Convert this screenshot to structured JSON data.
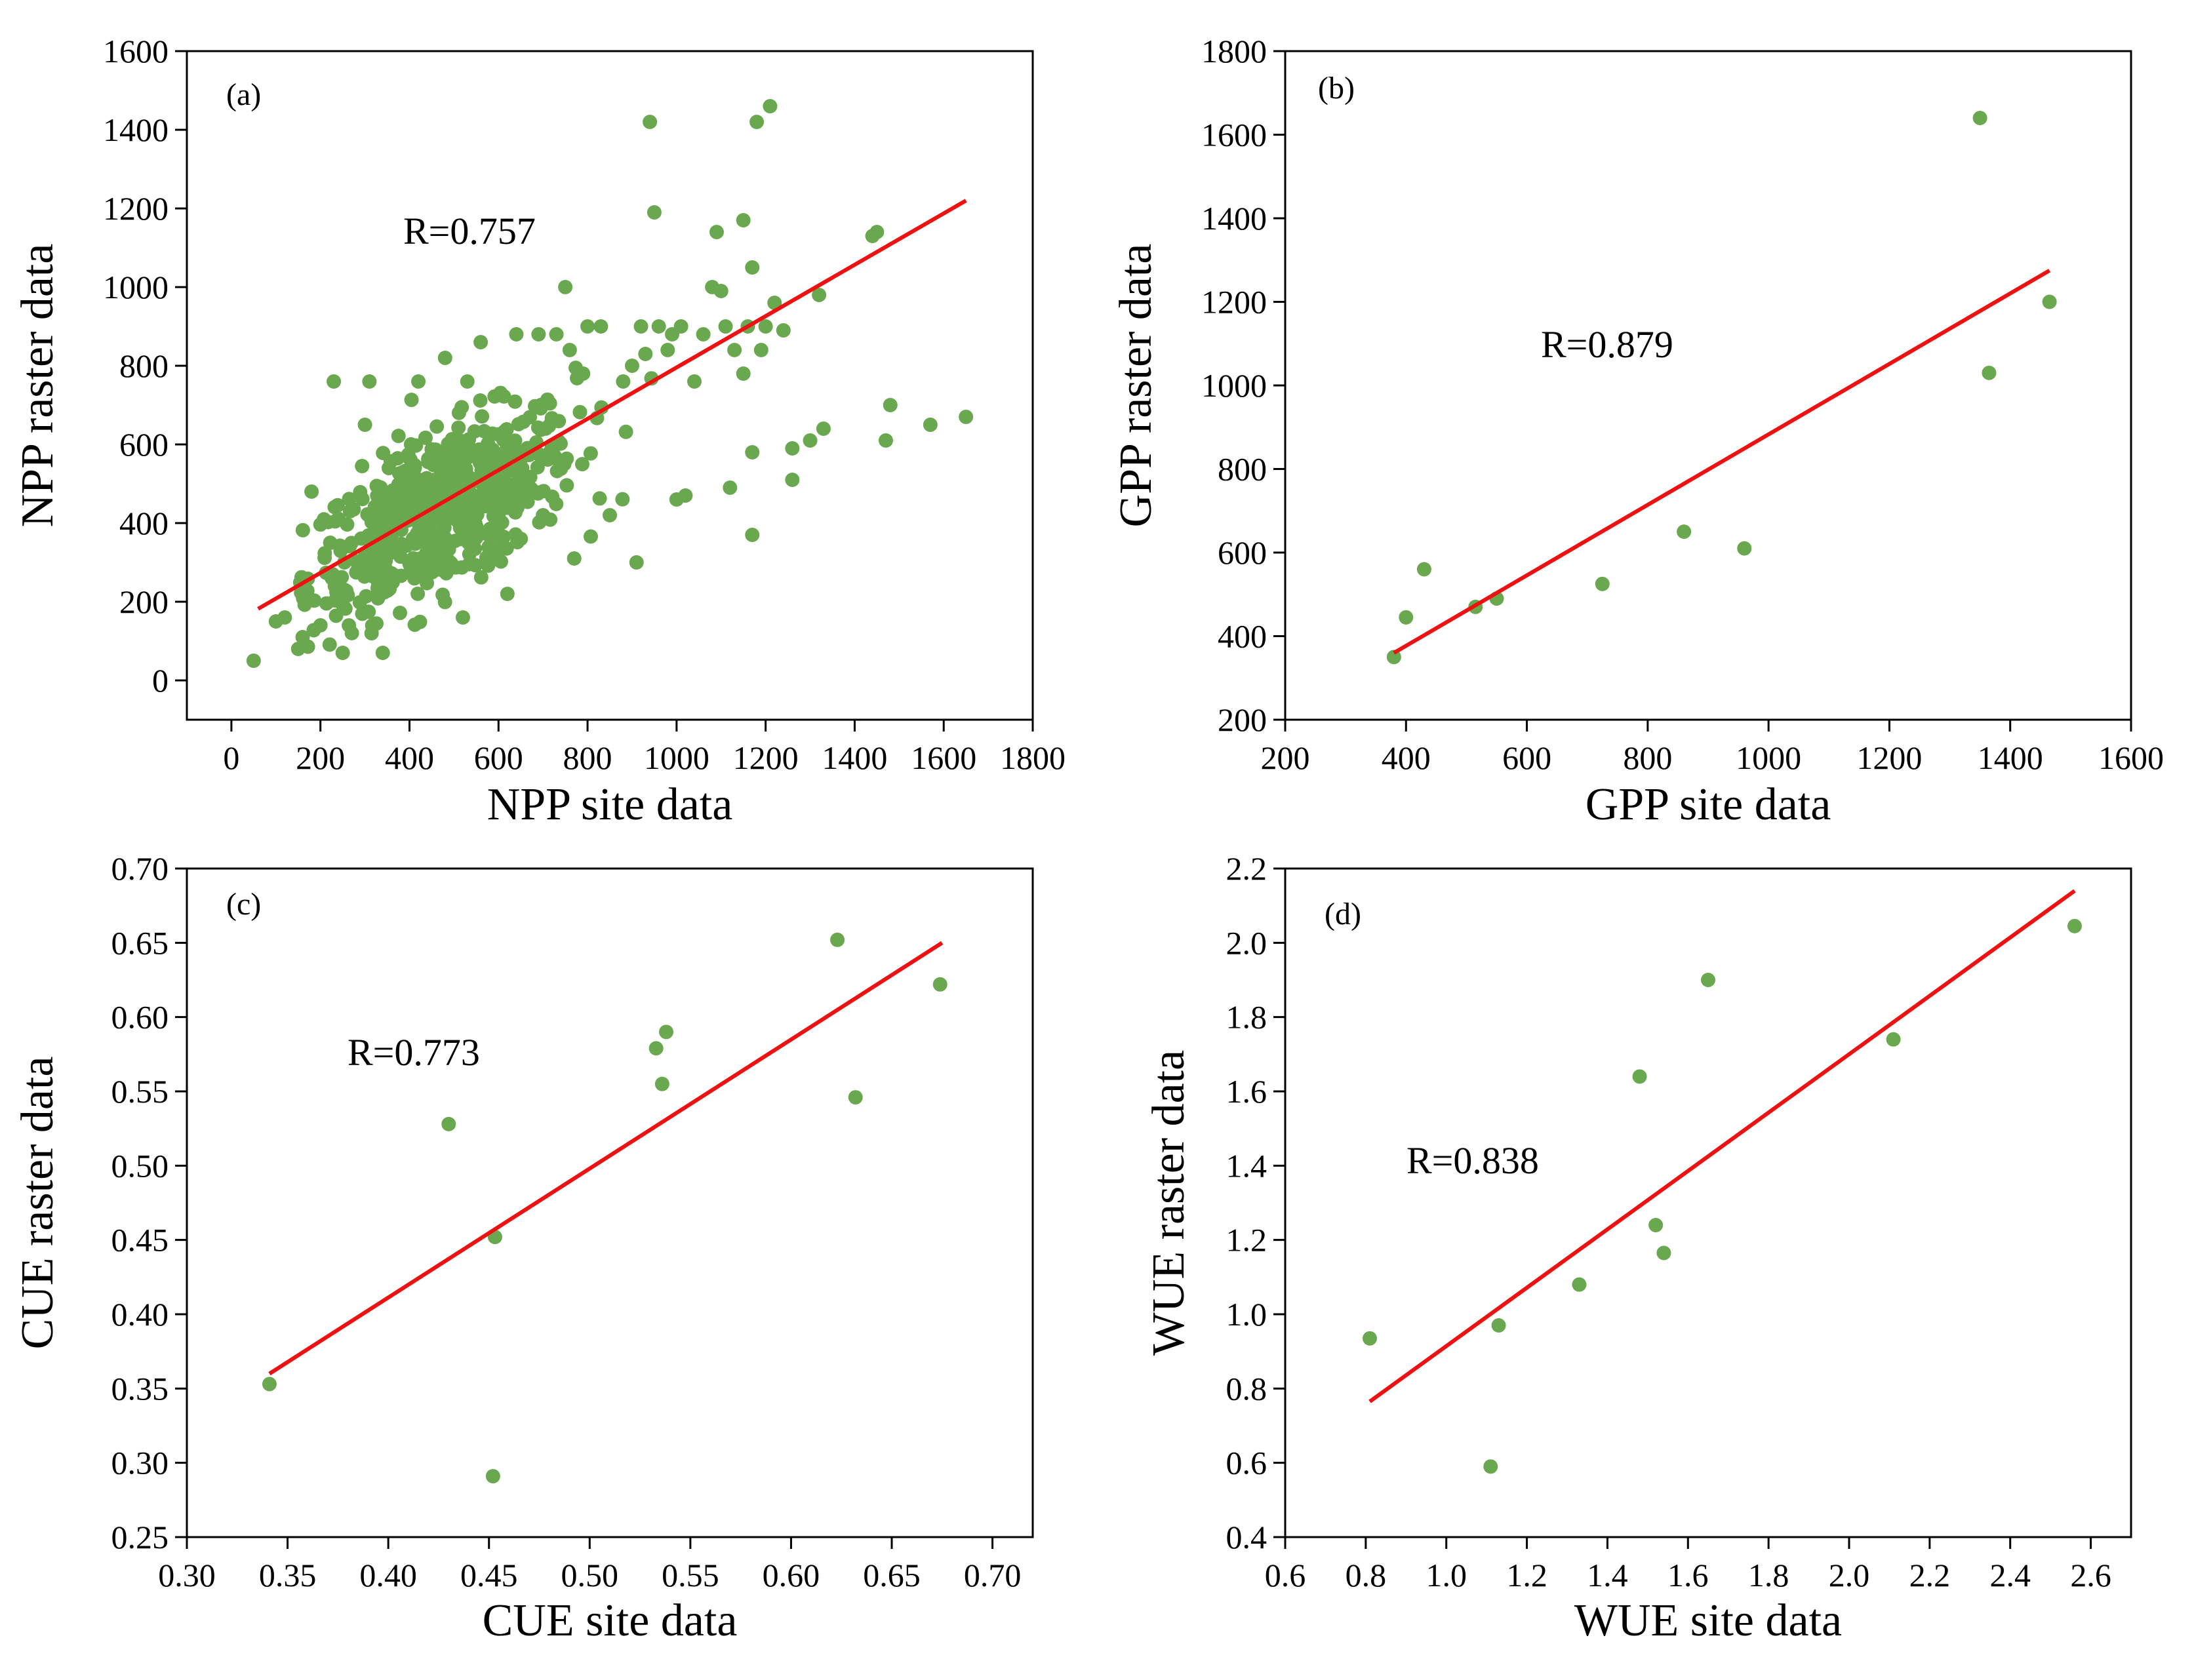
{
  "chart_data": [
    {
      "type": "scatter",
      "panel": "(a)",
      "r_text": "R=0.757",
      "xlabel": "NPP site data",
      "ylabel": "NPP raster data",
      "xlim": [
        -100,
        1800
      ],
      "ylim": [
        -100,
        1600
      ],
      "xticks": [
        0,
        200,
        400,
        600,
        800,
        1000,
        1200,
        1400,
        1600,
        1800
      ],
      "yticks": [
        0,
        200,
        400,
        600,
        800,
        1000,
        1200,
        1400,
        1600
      ],
      "tick_decimals": 0,
      "point_color": "#6aa84f",
      "line_color": "#ee1111",
      "fit_line": [
        [
          60,
          182
        ],
        [
          1650,
          1220
        ]
      ],
      "dense_cluster": {
        "center": [
          470,
          430
        ],
        "sd": [
          150,
          130
        ],
        "slope": 0.55,
        "count": 640
      },
      "points": [
        [
          50,
          50
        ],
        [
          100,
          150
        ],
        [
          120,
          160
        ],
        [
          150,
          80
        ],
        [
          160,
          110
        ],
        [
          180,
          480
        ],
        [
          200,
          140
        ],
        [
          230,
          760
        ],
        [
          250,
          70
        ],
        [
          300,
          650
        ],
        [
          310,
          760
        ],
        [
          340,
          70
        ],
        [
          420,
          760
        ],
        [
          480,
          820
        ],
        [
          520,
          160
        ],
        [
          530,
          760
        ],
        [
          560,
          860
        ],
        [
          590,
          310
        ],
        [
          600,
          420
        ],
        [
          620,
          220
        ],
        [
          640,
          880
        ],
        [
          650,
          360
        ],
        [
          690,
          880
        ],
        [
          700,
          420
        ],
        [
          730,
          880
        ],
        [
          750,
          1000
        ],
        [
          760,
          840
        ],
        [
          770,
          310
        ],
        [
          790,
          780
        ],
        [
          800,
          900
        ],
        [
          830,
          900
        ],
        [
          850,
          420
        ],
        [
          880,
          760
        ],
        [
          900,
          800
        ],
        [
          910,
          300
        ],
        [
          920,
          900
        ],
        [
          930,
          830
        ],
        [
          940,
          1420
        ],
        [
          950,
          1190
        ],
        [
          960,
          900
        ],
        [
          980,
          840
        ],
        [
          990,
          880
        ],
        [
          1000,
          460
        ],
        [
          1010,
          900
        ],
        [
          1020,
          470
        ],
        [
          1040,
          760
        ],
        [
          1060,
          880
        ],
        [
          1080,
          1000
        ],
        [
          1090,
          1140
        ],
        [
          1100,
          990
        ],
        [
          1110,
          900
        ],
        [
          1120,
          490
        ],
        [
          1130,
          840
        ],
        [
          1150,
          780
        ],
        [
          1150,
          1170
        ],
        [
          1160,
          900
        ],
        [
          1170,
          1050
        ],
        [
          1170,
          580
        ],
        [
          1170,
          370
        ],
        [
          1180,
          1420
        ],
        [
          1190,
          840
        ],
        [
          1200,
          900
        ],
        [
          1210,
          1460
        ],
        [
          1220,
          960
        ],
        [
          1240,
          890
        ],
        [
          1260,
          510
        ],
        [
          1260,
          590
        ],
        [
          1300,
          610
        ],
        [
          1320,
          980
        ],
        [
          1330,
          640
        ],
        [
          1440,
          1130
        ],
        [
          1450,
          1140
        ],
        [
          1470,
          610
        ],
        [
          1480,
          700
        ],
        [
          1570,
          650
        ],
        [
          1650,
          670
        ]
      ]
    },
    {
      "type": "scatter",
      "panel": "(b)",
      "r_text": "R=0.879",
      "xlabel": "GPP site data",
      "ylabel": "GPP raster data",
      "xlim": [
        200,
        1600
      ],
      "ylim": [
        200,
        1800
      ],
      "xticks": [
        200,
        400,
        600,
        800,
        1000,
        1200,
        1400,
        1600
      ],
      "yticks": [
        200,
        400,
        600,
        800,
        1000,
        1200,
        1400,
        1600,
        1800
      ],
      "tick_decimals": 0,
      "point_color": "#6aa84f",
      "line_color": "#ee1111",
      "fit_line": [
        [
          380,
          360
        ],
        [
          1465,
          1275
        ]
      ],
      "points": [
        [
          380,
          350
        ],
        [
          400,
          445
        ],
        [
          430,
          560
        ],
        [
          515,
          470
        ],
        [
          550,
          490
        ],
        [
          725,
          525
        ],
        [
          860,
          650
        ],
        [
          960,
          610
        ],
        [
          1350,
          1640
        ],
        [
          1365,
          1030
        ],
        [
          1465,
          1200
        ]
      ]
    },
    {
      "type": "scatter",
      "panel": "(c)",
      "r_text": "R=0.773",
      "xlabel": "CUE site data",
      "ylabel": "CUE raster data",
      "xlim": [
        0.3,
        0.72
      ],
      "ylim": [
        0.25,
        0.7
      ],
      "xticks": [
        0.3,
        0.35,
        0.4,
        0.45,
        0.5,
        0.55,
        0.6,
        0.65,
        0.7
      ],
      "yticks": [
        0.25,
        0.3,
        0.35,
        0.4,
        0.45,
        0.5,
        0.55,
        0.6,
        0.65,
        0.7
      ],
      "tick_decimals": 2,
      "point_color": "#6aa84f",
      "line_color": "#ee1111",
      "fit_line": [
        [
          0.341,
          0.36
        ],
        [
          0.675,
          0.65
        ]
      ],
      "points": [
        [
          0.341,
          0.353
        ],
        [
          0.43,
          0.528
        ],
        [
          0.452,
          0.291
        ],
        [
          0.453,
          0.452
        ],
        [
          0.533,
          0.579
        ],
        [
          0.536,
          0.555
        ],
        [
          0.538,
          0.59
        ],
        [
          0.623,
          0.652
        ],
        [
          0.632,
          0.546
        ],
        [
          0.674,
          0.622
        ]
      ]
    },
    {
      "type": "scatter",
      "panel": "(d)",
      "r_text": "R=0.838",
      "xlabel": "WUE site data",
      "ylabel": "WUE raster data",
      "xlim": [
        0.6,
        2.7
      ],
      "ylim": [
        0.4,
        2.2
      ],
      "xticks": [
        0.6,
        0.8,
        1.0,
        1.2,
        1.4,
        1.6,
        1.8,
        2.0,
        2.2,
        2.4,
        2.6
      ],
      "yticks": [
        0.4,
        0.6,
        0.8,
        1.0,
        1.2,
        1.4,
        1.6,
        1.8,
        2.0,
        2.2
      ],
      "tick_decimals": 1,
      "point_color": "#6aa84f",
      "line_color": "#ee1111",
      "fit_line": [
        [
          0.81,
          0.765
        ],
        [
          2.56,
          2.14
        ]
      ],
      "points": [
        [
          0.81,
          0.935
        ],
        [
          1.11,
          0.59
        ],
        [
          1.13,
          0.97
        ],
        [
          1.33,
          1.08
        ],
        [
          1.48,
          1.64
        ],
        [
          1.52,
          1.24
        ],
        [
          1.54,
          1.165
        ],
        [
          1.65,
          1.9
        ],
        [
          2.11,
          1.74
        ],
        [
          2.56,
          2.045
        ]
      ]
    }
  ]
}
